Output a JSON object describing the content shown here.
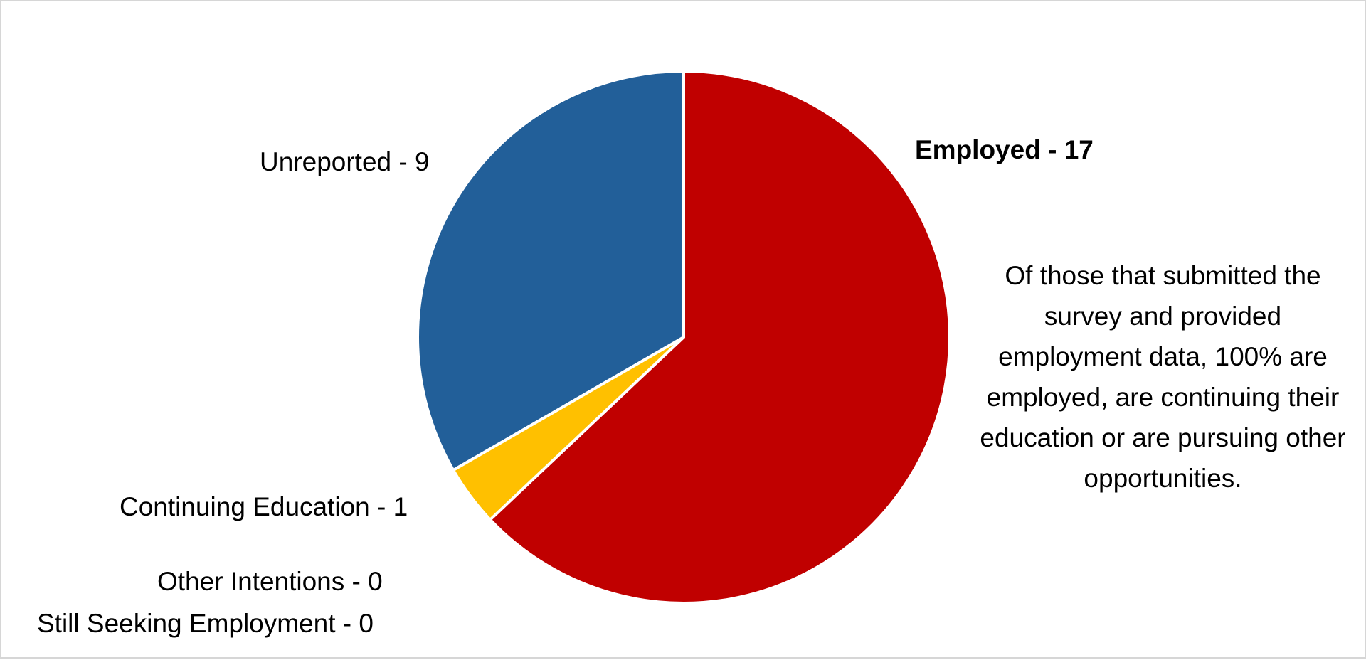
{
  "chart_data": {
    "type": "pie",
    "slices": [
      {
        "label": "Employed",
        "value": 17,
        "color": "#C00000",
        "display": "Employed - 17"
      },
      {
        "label": "Other Intentions",
        "value": 0,
        "color": "#A5A5A5",
        "display": "Other Intentions - 0"
      },
      {
        "label": "Still Seeking Employment",
        "value": 0,
        "color": "#70AD47",
        "display": "Still Seeking Employment - 0"
      },
      {
        "label": "Continuing Education",
        "value": 1,
        "color": "#FFC000",
        "display": "Continuing Education - 1"
      },
      {
        "label": "Unreported",
        "value": 9,
        "color": "#225F99",
        "display": "Unreported - 9"
      }
    ],
    "start_angle": "12 o'clock",
    "direction": "clockwise",
    "slice_border_color": "#FFFFFF",
    "legend": "none",
    "annotation": "Of those that submitted the survey and provided employment data, 100% are employed, are continuing their education or are pursuing other opportunities."
  }
}
